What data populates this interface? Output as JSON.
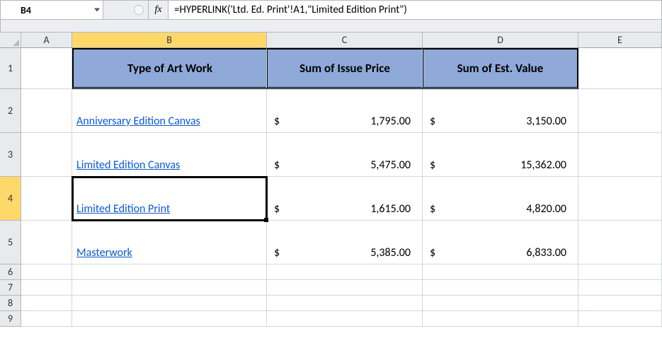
{
  "formula_bar": {
    "cell_ref": "B4",
    "fx_label": "fx",
    "formula": "=HYPERLINK('Ltd. Ed. Print'!A1,\"Limited Edition Print\")"
  },
  "columns": [
    "A",
    "B",
    "C",
    "D",
    "E"
  ],
  "selected_col": "B",
  "selected_row": 4,
  "headers": {
    "b": "Type of Art Work",
    "c": "Sum of Issue Price",
    "d": "Sum of Est. Value"
  },
  "rows": [
    {
      "label": "Anniversary Edition Canvas",
      "issue": "1,795.00",
      "est": "3,150.00"
    },
    {
      "label": "Limited Edition Canvas",
      "issue": "5,475.00",
      "est": "15,362.00"
    },
    {
      "label": "Limited Edition Print",
      "issue": "1,615.00",
      "est": "4,820.00"
    },
    {
      "label": "Masterwork",
      "issue": "5,385.00",
      "est": "6,833.00"
    }
  ],
  "row_labels": [
    "1",
    "2",
    "3",
    "4",
    "5",
    "6",
    "7",
    "8",
    "9"
  ],
  "currency_symbol": "$",
  "style": {
    "header_bg": "#8faad8",
    "col_sel_bg": "#ffd86b",
    "link_color": "#0b5bd3",
    "grid_border": "#d4d6d9",
    "hdr_border": "#b5b8bf",
    "body_font": "Calibri",
    "header_font_size": 17,
    "cell_font_size": 16,
    "selection_border": "#000000"
  }
}
